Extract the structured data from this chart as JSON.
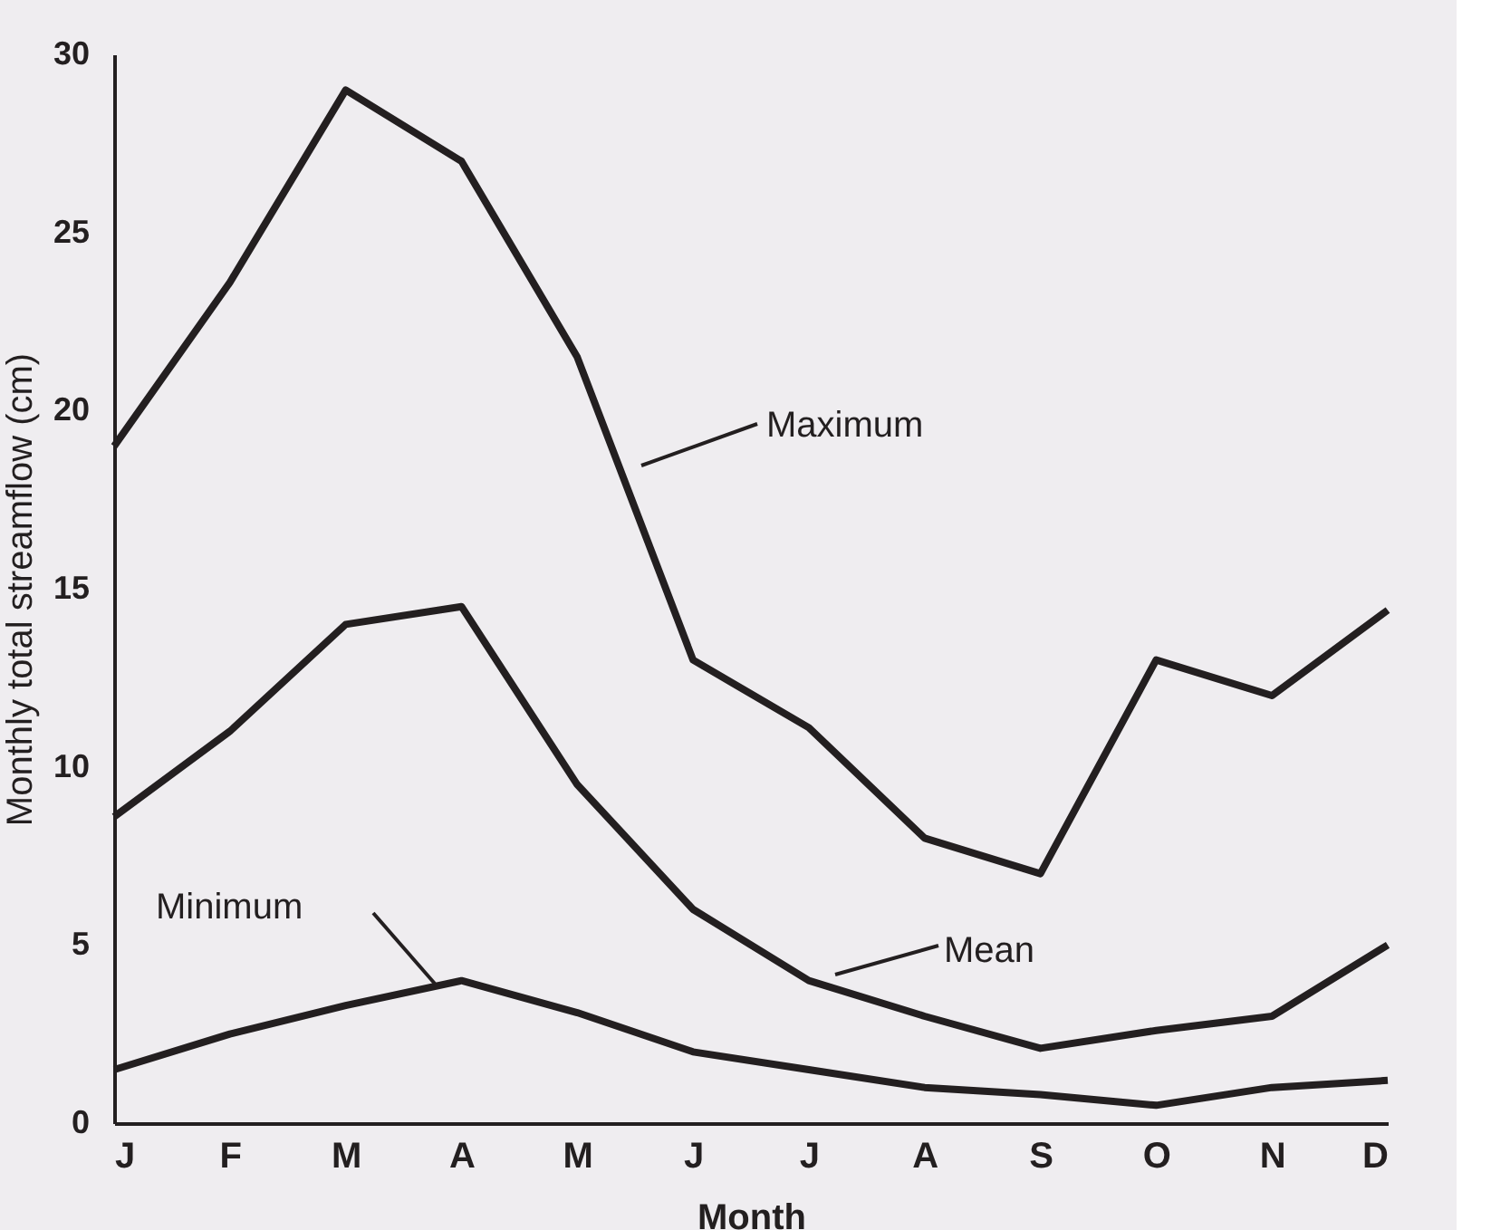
{
  "chart_data": {
    "type": "line",
    "xlabel": "Month",
    "ylabel": "Monthly total streamflow (cm)",
    "categories": [
      "J",
      "F",
      "M",
      "A",
      "M",
      "J",
      "J",
      "A",
      "S",
      "O",
      "N",
      "D"
    ],
    "series": [
      {
        "color": "#231f20",
        "values": [
          19.0,
          23.6,
          29.0,
          27.0,
          21.5,
          13.0,
          11.1,
          8.0,
          7.0,
          13.0,
          12.0,
          14.4
        ]
      },
      {
        "color": "#231f20",
        "values": [
          8.6,
          11.0,
          14.0,
          14.5,
          9.5,
          6.0,
          4.0,
          3.0,
          2.1,
          2.6,
          3.0,
          5.0
        ]
      },
      {
        "color": "#231f20",
        "values": [
          1.5,
          2.5,
          3.3,
          4.0,
          3.1,
          2.0,
          1.5,
          1.0,
          0.8,
          0.5,
          1.0,
          1.2
        ]
      }
    ],
    "annotations": [
      "Maximum",
      "Mean",
      "Minimum"
    ],
    "ylim": [
      0,
      30
    ],
    "yticks": [
      0,
      5,
      10,
      15,
      20,
      25,
      30
    ],
    "grid": false,
    "legend": false,
    "marker": "none",
    "line_style": "solid"
  }
}
